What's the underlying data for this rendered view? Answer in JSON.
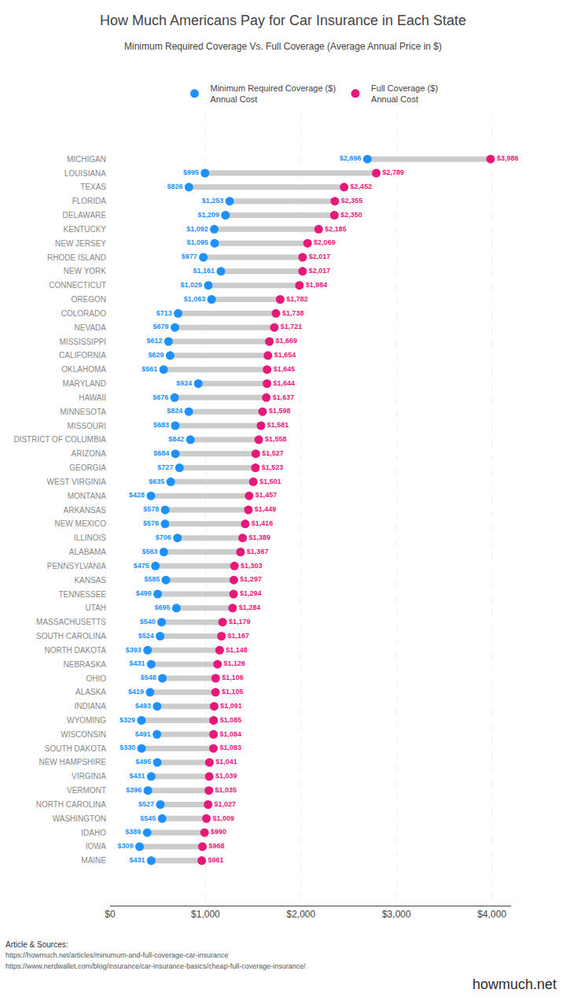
{
  "chart_data": {
    "type": "dumbbell",
    "title": "How Much Americans Pay for Car Insurance in Each State",
    "subtitle": "Minimum Required Coverage Vs. Full Coverage (Average Annual Price in $)",
    "orientation": "horizontal",
    "categories": [
      "MICHIGAN",
      "LOUISIANA",
      "TEXAS",
      "FLORIDA",
      "DELAWARE",
      "KENTUCKY",
      "NEW JERSEY",
      "RHODE ISLAND",
      "NEW YORK",
      "CONNECTICUT",
      "OREGON",
      "COLORADO",
      "NEVADA",
      "MISSISSIPPI",
      "CALIFORNIA",
      "OKLAHOMA",
      "MARYLAND",
      "HAWAII",
      "MINNESOTA",
      "MISSOURI",
      "DISTRICT OF COLUMBIA",
      "ARIZONA",
      "GEORGIA",
      "WEST VIRGINIA",
      "MONTANA",
      "ARKANSAS",
      "NEW MEXICO",
      "ILLINOIS",
      "ALABAMA",
      "PENNSYLVANIA",
      "KANSAS",
      "TENNESSEE",
      "UTAH",
      "MASSACHUSETTS",
      "SOUTH CAROLINA",
      "NORTH DAKOTA",
      "NEBRASKA",
      "OHIO",
      "ALASKA",
      "INDIANA",
      "WYOMING",
      "WISCONSIN",
      "SOUTH DAKOTA",
      "NEW HAMPSHIRE",
      "VIRGINIA",
      "VERMONT",
      "NORTH CAROLINA",
      "WASHINGTON",
      "IDAHO",
      "IOWA",
      "MAINE"
    ],
    "color": "#cccccc",
    "series": [
      {
        "name": "Minimum Required Coverage ($)\nAnnual Cost",
        "color": "#1e90ff",
        "values": [
          2696,
          995,
          826,
          1253,
          1209,
          1092,
          1095,
          977,
          1161,
          1029,
          1063,
          713,
          679,
          612,
          629,
          561,
          924,
          676,
          824,
          683,
          842,
          684,
          727,
          635,
          428,
          578,
          576,
          706,
          563,
          475,
          585,
          499,
          695,
          540,
          524,
          393,
          431,
          548,
          419,
          493,
          329,
          491,
          330,
          495,
          431,
          396,
          527,
          545,
          389,
          309,
          431
        ],
        "value_labels": [
          "$2,696",
          "$995",
          "$826",
          "$1,253",
          "$1,209",
          "$1,092",
          "$1,095",
          "$977",
          "$1,161",
          "$1,029",
          "$1,063",
          "$713",
          "$679",
          "$612",
          "$629",
          "$561",
          "$924",
          "$676",
          "$824",
          "$683",
          "$842",
          "$684",
          "$727",
          "$635",
          "$428",
          "$578",
          "$576",
          "$706",
          "$563",
          "$475",
          "$585",
          "$499",
          "$695",
          "$540",
          "$524",
          "$393",
          "$431",
          "$548",
          "$419",
          "$493",
          "$329",
          "$491",
          "$330",
          "$495",
          "$431",
          "$396",
          "$527",
          "$545",
          "$389",
          "$309",
          "$431"
        ]
      },
      {
        "name": "Full Coverage ($)\nAnnual Cost",
        "color": "#e8187a",
        "values": [
          3986,
          2789,
          2452,
          2355,
          2350,
          2185,
          2069,
          2017,
          2017,
          1984,
          1782,
          1738,
          1721,
          1669,
          1654,
          1645,
          1644,
          1637,
          1598,
          1581,
          1558,
          1527,
          1523,
          1501,
          1457,
          1449,
          1416,
          1389,
          1367,
          1303,
          1297,
          1294,
          1284,
          1179,
          1167,
          1148,
          1126,
          1106,
          1105,
          1091,
          1085,
          1084,
          1083,
          1041,
          1039,
          1035,
          1027,
          1009,
          990,
          968,
          961
        ],
        "value_labels": [
          "$3,986",
          "$2,789",
          "$2,452",
          "$2,355",
          "$2,350",
          "$2,185",
          "$2,069",
          "$2,017",
          "$2,017",
          "$1,984",
          "$1,782",
          "$1,738",
          "$1,721",
          "$1,669",
          "$1,654",
          "$1,645",
          "$1,644",
          "$1,637",
          "$1,598",
          "$1,581",
          "$1,558",
          "$1,527",
          "$1,523",
          "$1,501",
          "$1,457",
          "$1,449",
          "$1,416",
          "$1,389",
          "$1,367",
          "$1,303",
          "$1,297",
          "$1,294",
          "$1,284",
          "$1,179",
          "$1,167",
          "$1,148",
          "$1,126",
          "$1,106",
          "$1,105",
          "$1,091",
          "$1,085",
          "$1,084",
          "$1,083",
          "$1,041",
          "$1,039",
          "$1,035",
          "$1,027",
          "$1,009",
          "$990",
          "$968",
          "$961"
        ]
      }
    ],
    "xlim": [
      0,
      4200
    ],
    "xticks": [
      {
        "value": 0,
        "label": "$0"
      },
      {
        "value": 1000,
        "label": "$1,000"
      },
      {
        "value": 2000,
        "label": "$2,000"
      },
      {
        "value": 3000,
        "label": "$3,000"
      },
      {
        "value": 4000,
        "label": "$4,000"
      }
    ],
    "grid": true,
    "data_labels": true,
    "legend": "top",
    "annotations": [
      "Article & Sources:",
      "https://howmuch.net/articles/minumum-and-full-coverage-car-insurance",
      "https://www.nerdwallet.com/blog/insurance/car-insurance-basics/cheap-full-coverage-insurance/",
      "howmuch.net"
    ]
  }
}
